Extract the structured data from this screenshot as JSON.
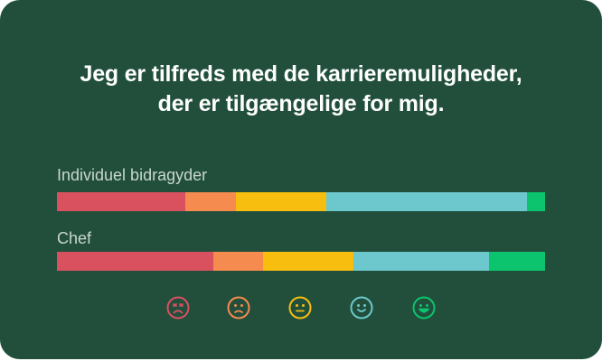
{
  "title": {
    "line1": "Jeg er tilfreds med de karrieremuligheder,",
    "line2": "der er tilgængelige for mig."
  },
  "colors": {
    "background": "#214f3c",
    "scale": [
      "#d9505f",
      "#f58b4f",
      "#f7bd0f",
      "#6cc8cc",
      "#0bc46d"
    ]
  },
  "faces": [
    {
      "icon": "very-dissatisfied-face-icon",
      "color": "#d9505f"
    },
    {
      "icon": "dissatisfied-face-icon",
      "color": "#f58b4f"
    },
    {
      "icon": "neutral-face-icon",
      "color": "#f7bd0f"
    },
    {
      "icon": "satisfied-face-icon",
      "color": "#6cc8cc"
    },
    {
      "icon": "very-satisfied-face-icon",
      "color": "#0bc46d"
    }
  ],
  "chart_data": {
    "type": "bar",
    "orientation": "horizontal",
    "stacked": true,
    "normalized": true,
    "categories": [
      "Individuel bidragyder",
      "Chef"
    ],
    "series": [
      {
        "values": [
          26.3,
          32.0
        ]
      },
      {
        "values": [
          10.3,
          10.3
        ]
      },
      {
        "values": [
          18.5,
          18.5
        ]
      },
      {
        "values": [
          41.2,
          27.8
        ]
      },
      {
        "values": [
          3.7,
          11.4
        ]
      }
    ],
    "xlim": [
      0,
      100
    ],
    "grid": false,
    "legend": "icons below bars"
  }
}
